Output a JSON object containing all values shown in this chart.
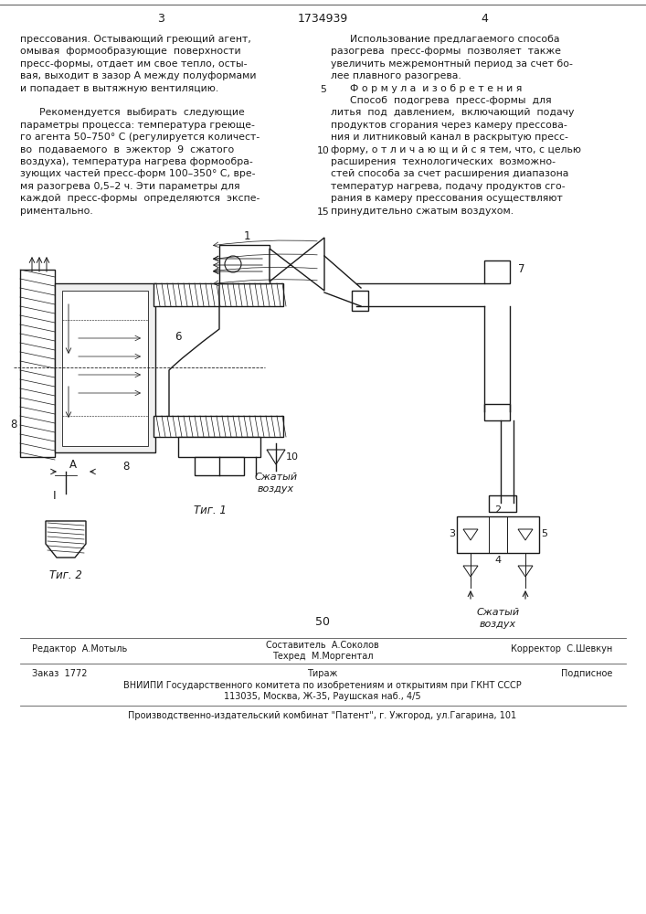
{
  "page_number_left": "3",
  "patent_number": "1734939",
  "page_number_right": "4",
  "left_col_lines": [
    "прессования. Остывающий греющий агент,",
    "омывая  формообразующие  поверхности",
    "пресс-формы, отдает им свое тепло, осты-",
    "вая, выходит в зазор А между полуформами",
    "и попадает в вытяжную вентиляцию.",
    "",
    "      Рекомендуется  выбирать  следующие",
    "параметры процесса: температура греюще-",
    "го агента 50–750° С (регулируется количест-",
    "во  подаваемого  в  эжектор  9  сжатого",
    "воздуха), температура нагрева формообра-",
    "зующих частей пресс-форм 100–350° С, вре-",
    "мя разогрева 0,5–2 ч. Эти параметры для",
    "каждой  пресс-формы  определяются  экспе-",
    "риментально."
  ],
  "right_col_lines": [
    "      Использование предлагаемого способа",
    "разогрева  пресс-формы  позволяет  также",
    "увеличить межремонтный период за счет бо-",
    "лее плавного разогрева.",
    "      Ф о р м у л а  и з о б р е т е н и я",
    "      Способ  подогрева  пресс-формы  для",
    "литья  под  давлением,  включающий  подачу",
    "продуктов сгорания через камеру прессова-",
    "ния и литниковый канал в раскрытую пресс-",
    "форму, о т л и ч а ю щ и й с я тем, что, с целью",
    "расширения  технологических  возможно-",
    "стей способа за счет расширения диапазона",
    "температур нагрева, подачу продуктов сго-",
    "рания в камеру прессования осуществляют",
    "принудительно сжатым воздухом."
  ],
  "line_nums": [
    [
      4,
      "5"
    ],
    [
      9,
      "10"
    ],
    [
      14,
      "15"
    ]
  ],
  "fig1_label": "Τиг. 1",
  "fig2_label": "Τиг. 2",
  "page_num_bottom": "50",
  "footer_editor": "Редактор  А.Мотыль",
  "footer_composer": "Составитель  А.Соколов",
  "footer_techred": "Техред  М.Моргентал",
  "footer_corrector": "Корректор  С.Шевкун",
  "footer_order": "Заказ  1772",
  "footer_tirazh": "Тираж",
  "footer_podpisnoe": "Подписное",
  "footer_vniiipi": "ВНИИПИ Государственного комитета по изобретениям и открытиям при ГКНТ СССР",
  "footer_address": "113035, Москва, Ж-35, Раушская наб., 4/5",
  "footer_factory": "Производственно-издательский комбинат \"Патент\", г. Ужгород, ул.Гагарина, 101",
  "bg_color": "#ffffff",
  "text_color": "#1a1a1a",
  "draw_color": "#1a1a1a"
}
